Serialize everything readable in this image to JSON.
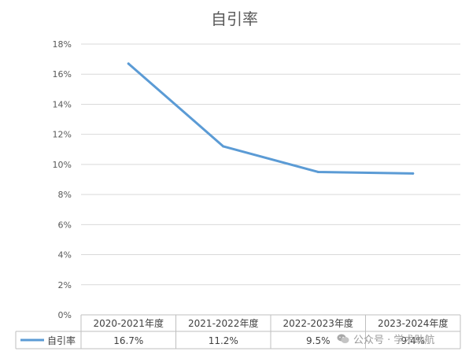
{
  "chart_data": {
    "type": "line",
    "title": "自引率",
    "categories": [
      "2020-2021年度",
      "2021-2022年度",
      "2022-2023年度",
      "2023-2024年度"
    ],
    "series": [
      {
        "name": "自引率",
        "values": [
          16.7,
          11.2,
          9.5,
          9.4
        ],
        "labels": [
          "16.7%",
          "11.2%",
          "9.5%",
          "9.4%"
        ]
      }
    ],
    "ylim": [
      0,
      18
    ],
    "yticks": [
      "0%",
      "2%",
      "4%",
      "6%",
      "8%",
      "10%",
      "12%",
      "14%",
      "16%",
      "18%"
    ],
    "grid": true,
    "data_table": true,
    "line_color": "#5b9bd5"
  },
  "watermark": {
    "text": "公众号 · 学术助航",
    "icon": "wechat-icon"
  }
}
